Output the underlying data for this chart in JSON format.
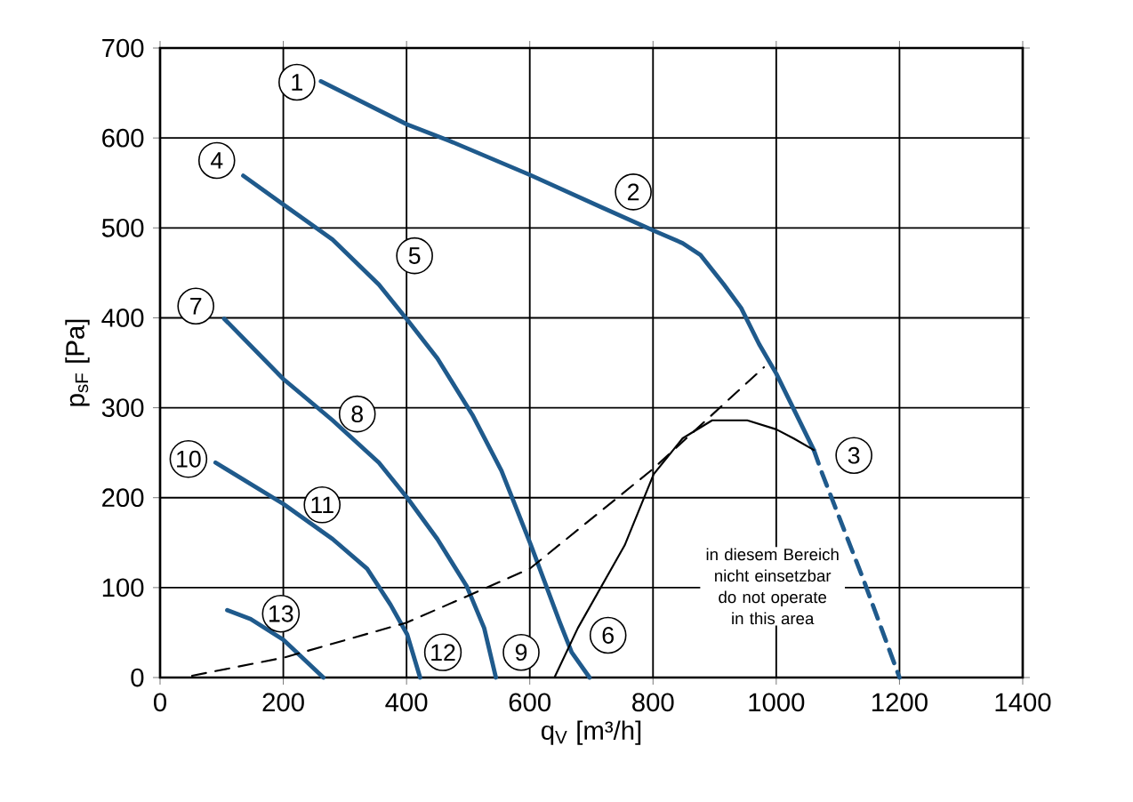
{
  "chart_data": {
    "type": "line",
    "xlabel": "q$_{V}$ [m³/h]",
    "ylabel": "p$_{sF}$ [Pa]",
    "xlim": [
      0,
      1400
    ],
    "ylim": [
      0,
      700
    ],
    "xticks": [
      0,
      200,
      400,
      600,
      800,
      1000,
      1200,
      1400
    ],
    "yticks": [
      0,
      100,
      200,
      300,
      400,
      500,
      600,
      700
    ],
    "grid": true,
    "series": [
      {
        "color": "#1f5a8c",
        "x": [
          261,
          401,
          469,
          600,
          716,
          801,
          848,
          877,
          915,
          943,
          972,
          1000,
          1028,
          1061
        ],
        "values": [
          663,
          615,
          597,
          559,
          523,
          497,
          483,
          470,
          437,
          411,
          371,
          338,
          299,
          253
        ]
      },
      {
        "color": "#1f5a8c",
        "line_style": "dashed",
        "x": [
          1061,
          1075,
          1142,
          1200
        ],
        "values": [
          253,
          226,
          108,
          0
        ]
      },
      {
        "color": "#1f5a8c",
        "x": [
          135,
          200,
          280,
          355,
          401,
          450,
          507,
          554,
          602,
          649,
          668,
          697
        ],
        "values": [
          558,
          526,
          487,
          437,
          398,
          355,
          292,
          230,
          147,
          61,
          28,
          0
        ]
      },
      {
        "color": "#1f5a8c",
        "x": [
          104,
          200,
          280,
          355,
          401,
          450,
          498,
          526,
          545
        ],
        "values": [
          399,
          332,
          286,
          239,
          200,
          154,
          101,
          55,
          0
        ]
      },
      {
        "color": "#1f5a8c",
        "x": [
          90,
          200,
          280,
          336,
          374,
          401,
          422
        ],
        "values": [
          239,
          193,
          154,
          121,
          81,
          48,
          0
        ]
      },
      {
        "color": "#1f5a8c",
        "x": [
          109,
          147,
          200,
          265
        ],
        "values": [
          75,
          65,
          42,
          0
        ]
      },
      {
        "color": "#000000",
        "line_style": "dashed",
        "x": [
          52,
          200,
          400,
          600,
          800,
          980
        ],
        "values": [
          2,
          22,
          61,
          121,
          232,
          345
        ]
      },
      {
        "color": "#000000",
        "x": [
          640,
          678,
          754,
          801,
          848,
          896,
          953,
          1000,
          1028,
          1061
        ],
        "values": [
          0,
          55,
          147,
          226,
          266,
          286,
          286,
          276,
          266,
          253
        ]
      }
    ],
    "annotations": [
      {
        "text": "1",
        "x": 222,
        "y": 662
      },
      {
        "text": "2",
        "x": 768,
        "y": 540
      },
      {
        "text": "3",
        "x": 1126,
        "y": 247
      },
      {
        "text": "4",
        "x": 92,
        "y": 575
      },
      {
        "text": "5",
        "x": 413,
        "y": 469
      },
      {
        "text": "6",
        "x": 727,
        "y": 47
      },
      {
        "text": "7",
        "x": 58,
        "y": 413
      },
      {
        "text": "8",
        "x": 320,
        "y": 293
      },
      {
        "text": "9",
        "x": 586,
        "y": 28
      },
      {
        "text": "10",
        "x": 46,
        "y": 243
      },
      {
        "text": "11",
        "x": 263,
        "y": 192
      },
      {
        "text": "12",
        "x": 459,
        "y": 28
      },
      {
        "text": "13",
        "x": 196,
        "y": 71
      },
      "in diesem Bereich nicht einsetzbar do not operate in this area"
    ]
  }
}
